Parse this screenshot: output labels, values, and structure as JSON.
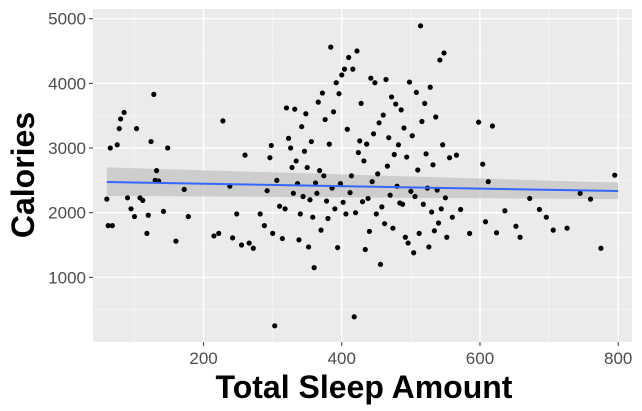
{
  "chart_data": {
    "type": "scatter",
    "title": "",
    "xlabel": "Total Sleep Amount",
    "ylabel": "Calories",
    "xlim": [
      40,
      820
    ],
    "ylim": [
      0,
      5150
    ],
    "x_ticks": [
      200,
      400,
      600,
      800
    ],
    "y_ticks": [
      1000,
      2000,
      3000,
      4000,
      5000
    ],
    "grid": true,
    "panel_color": "#ebebeb",
    "point_color": "#000000",
    "trend_color": "#3366ff",
    "band_color": "#c8c8c8",
    "trend": {
      "x": [
        60,
        800
      ],
      "y": [
        2475,
        2335
      ],
      "band_lower": [
        2260,
        2210
      ],
      "band_upper": [
        2700,
        2465
      ]
    },
    "points": [
      [
        60,
        2210
      ],
      [
        62,
        1800
      ],
      [
        65,
        3000
      ],
      [
        68,
        1800
      ],
      [
        75,
        3050
      ],
      [
        78,
        3300
      ],
      [
        80,
        3450
      ],
      [
        85,
        3550
      ],
      [
        90,
        2230
      ],
      [
        95,
        2060
      ],
      [
        100,
        1940
      ],
      [
        103,
        3300
      ],
      [
        108,
        2230
      ],
      [
        112,
        2190
      ],
      [
        118,
        1680
      ],
      [
        120,
        1960
      ],
      [
        124,
        3100
      ],
      [
        128,
        3830
      ],
      [
        130,
        2500
      ],
      [
        132,
        2650
      ],
      [
        135,
        2490
      ],
      [
        142,
        2020
      ],
      [
        148,
        3000
      ],
      [
        160,
        1560
      ],
      [
        172,
        2360
      ],
      [
        178,
        1940
      ],
      [
        215,
        1640
      ],
      [
        222,
        1680
      ],
      [
        228,
        3420
      ],
      [
        238,
        2410
      ],
      [
        242,
        1610
      ],
      [
        248,
        1980
      ],
      [
        255,
        1500
      ],
      [
        260,
        2890
      ],
      [
        266,
        1530
      ],
      [
        272,
        1450
      ],
      [
        282,
        1980
      ],
      [
        288,
        1800
      ],
      [
        292,
        2340
      ],
      [
        296,
        2850
      ],
      [
        298,
        3040
      ],
      [
        300,
        1680
      ],
      [
        303,
        250
      ],
      [
        306,
        2500
      ],
      [
        310,
        2100
      ],
      [
        314,
        1600
      ],
      [
        318,
        2060
      ],
      [
        320,
        3620
      ],
      [
        323,
        3150
      ],
      [
        326,
        3000
      ],
      [
        328,
        2700
      ],
      [
        330,
        2300
      ],
      [
        332,
        3600
      ],
      [
        334,
        2800
      ],
      [
        336,
        2450
      ],
      [
        338,
        1580
      ],
      [
        340,
        1980
      ],
      [
        342,
        3330
      ],
      [
        344,
        2250
      ],
      [
        346,
        2950
      ],
      [
        348,
        3530
      ],
      [
        350,
        2700
      ],
      [
        352,
        1470
      ],
      [
        354,
        2200
      ],
      [
        356,
        3100
      ],
      [
        358,
        1930
      ],
      [
        360,
        1150
      ],
      [
        362,
        2460
      ],
      [
        364,
        2300
      ],
      [
        366,
        3710
      ],
      [
        368,
        2650
      ],
      [
        370,
        1730
      ],
      [
        372,
        3850
      ],
      [
        374,
        2570
      ],
      [
        376,
        3440
      ],
      [
        378,
        2180
      ],
      [
        380,
        1910
      ],
      [
        382,
        3060
      ],
      [
        384,
        4560
      ],
      [
        386,
        2380
      ],
      [
        388,
        3560
      ],
      [
        390,
        2060
      ],
      [
        392,
        4010
      ],
      [
        394,
        1460
      ],
      [
        396,
        3840
      ],
      [
        398,
        2450
      ],
      [
        400,
        4130
      ],
      [
        402,
        2160
      ],
      [
        404,
        4220
      ],
      [
        406,
        1980
      ],
      [
        408,
        3290
      ],
      [
        410,
        4400
      ],
      [
        412,
        2310
      ],
      [
        414,
        2570
      ],
      [
        416,
        4220
      ],
      [
        418,
        390
      ],
      [
        420,
        2000
      ],
      [
        422,
        4500
      ],
      [
        424,
        2930
      ],
      [
        426,
        3110
      ],
      [
        428,
        3690
      ],
      [
        430,
        2170
      ],
      [
        432,
        2800
      ],
      [
        434,
        1430
      ],
      [
        436,
        3060
      ],
      [
        438,
        2220
      ],
      [
        440,
        1710
      ],
      [
        442,
        4080
      ],
      [
        444,
        2480
      ],
      [
        446,
        3220
      ],
      [
        448,
        4010
      ],
      [
        450,
        1980
      ],
      [
        452,
        2600
      ],
      [
        454,
        3390
      ],
      [
        456,
        1200
      ],
      [
        458,
        2090
      ],
      [
        460,
        3510
      ],
      [
        462,
        1830
      ],
      [
        464,
        4060
      ],
      [
        466,
        2720
      ],
      [
        468,
        3160
      ],
      [
        470,
        2270
      ],
      [
        472,
        3790
      ],
      [
        474,
        1760
      ],
      [
        476,
        2900
      ],
      [
        478,
        3680
      ],
      [
        480,
        2410
      ],
      [
        482,
        3050
      ],
      [
        484,
        2150
      ],
      [
        486,
        3590
      ],
      [
        488,
        2130
      ],
      [
        490,
        3310
      ],
      [
        492,
        1620
      ],
      [
        494,
        2860
      ],
      [
        496,
        1530
      ],
      [
        498,
        4020
      ],
      [
        500,
        2330
      ],
      [
        502,
        3190
      ],
      [
        504,
        1380
      ],
      [
        506,
        2250
      ],
      [
        508,
        3860
      ],
      [
        510,
        2660
      ],
      [
        512,
        1680
      ],
      [
        514,
        4890
      ],
      [
        516,
        3410
      ],
      [
        518,
        2130
      ],
      [
        520,
        3690
      ],
      [
        522,
        2910
      ],
      [
        524,
        2380
      ],
      [
        526,
        1470
      ],
      [
        528,
        3940
      ],
      [
        530,
        2010
      ],
      [
        532,
        2740
      ],
      [
        534,
        1720
      ],
      [
        536,
        3480
      ],
      [
        538,
        2350
      ],
      [
        540,
        1840
      ],
      [
        542,
        4360
      ],
      [
        544,
        2060
      ],
      [
        546,
        3050
      ],
      [
        548,
        4470
      ],
      [
        550,
        2230
      ],
      [
        552,
        1620
      ],
      [
        556,
        2850
      ],
      [
        560,
        1930
      ],
      [
        566,
        2890
      ],
      [
        572,
        2050
      ],
      [
        585,
        1680
      ],
      [
        598,
        3400
      ],
      [
        604,
        2750
      ],
      [
        608,
        1860
      ],
      [
        612,
        2480
      ],
      [
        618,
        3340
      ],
      [
        624,
        1690
      ],
      [
        636,
        2030
      ],
      [
        652,
        1790
      ],
      [
        658,
        1620
      ],
      [
        672,
        2220
      ],
      [
        686,
        2050
      ],
      [
        696,
        1930
      ],
      [
        706,
        1730
      ],
      [
        726,
        1760
      ],
      [
        745,
        2300
      ],
      [
        760,
        2210
      ],
      [
        775,
        1450
      ],
      [
        795,
        2580
      ]
    ]
  }
}
